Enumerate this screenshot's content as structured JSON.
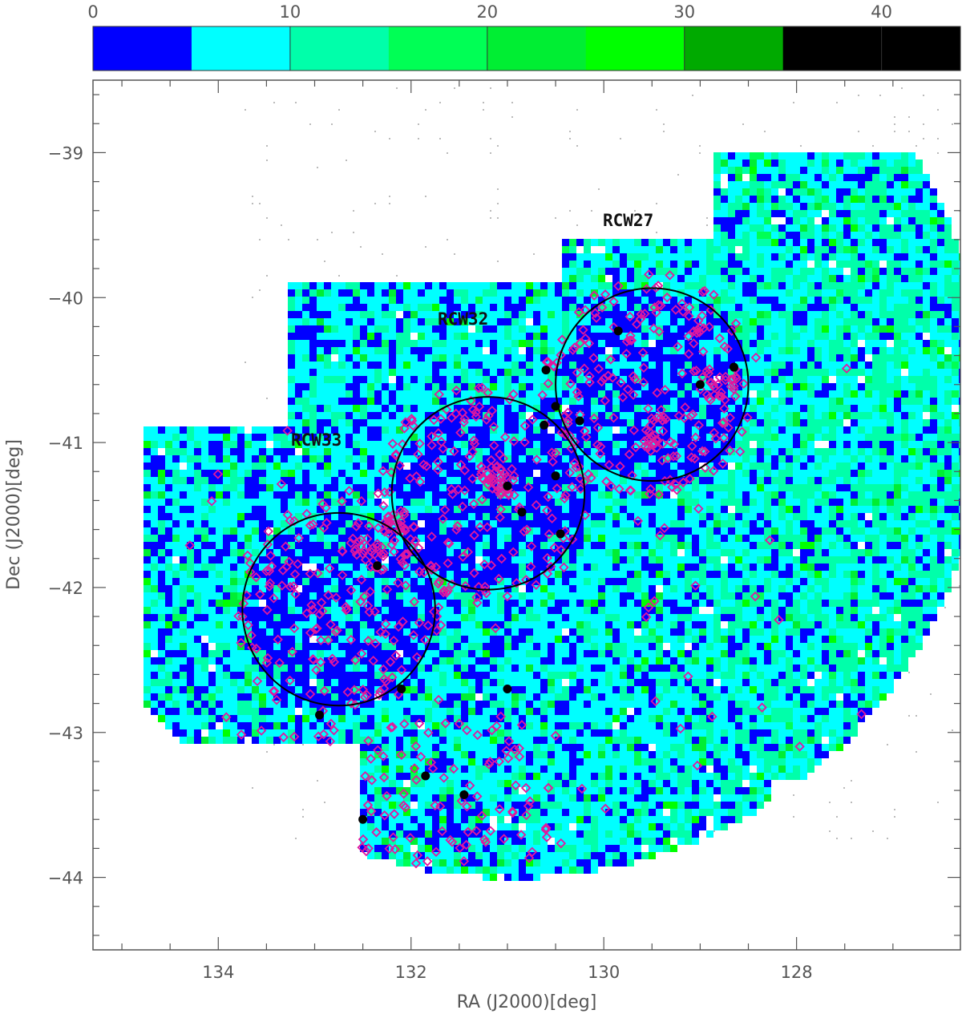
{
  "chart_data": {
    "type": "scatter",
    "colorbar": {
      "ticks": [
        0,
        10,
        20,
        30,
        40
      ],
      "range": [
        0,
        44
      ],
      "bins": [
        {
          "from": 0,
          "to": 5,
          "color": "#0000ff"
        },
        {
          "from": 5,
          "to": 10,
          "color": "#00ffff"
        },
        {
          "from": 10,
          "to": 15,
          "color": "#00ffaa"
        },
        {
          "from": 15,
          "to": 20,
          "color": "#00ff55"
        },
        {
          "from": 20,
          "to": 25,
          "color": "#00ee33"
        },
        {
          "from": 25,
          "to": 30,
          "color": "#00ff00"
        },
        {
          "from": 30,
          "to": 35,
          "color": "#00aa00"
        },
        {
          "from": 35,
          "to": 44,
          "color": "#000000"
        }
      ]
    },
    "xlabel": "RA (J2000)[deg]",
    "ylabel": "Dec (J2000)[deg]",
    "xlim": [
      135.3,
      126.3
    ],
    "ylim": [
      -44.5,
      -38.5
    ],
    "x_ticks": [
      134,
      132,
      130,
      128
    ],
    "y_ticks": [
      -39,
      -40,
      -41,
      -42,
      -43,
      -44
    ],
    "regions": [
      {
        "name": "RCW27",
        "ra": 129.5,
        "dec": -40.6,
        "radius_deg": 1.0
      },
      {
        "name": "RCW32",
        "ra": 131.2,
        "dec": -41.35,
        "radius_deg": 1.0
      },
      {
        "name": "RCW33",
        "ra": 132.75,
        "dec": -42.15,
        "radius_deg": 1.0
      }
    ],
    "black_points": [
      {
        "ra": 129.85,
        "dec": -40.23
      },
      {
        "ra": 128.65,
        "dec": -40.48
      },
      {
        "ra": 129.0,
        "dec": -40.6
      },
      {
        "ra": 130.6,
        "dec": -40.5
      },
      {
        "ra": 130.5,
        "dec": -40.75
      },
      {
        "ra": 130.62,
        "dec": -40.88
      },
      {
        "ra": 130.25,
        "dec": -40.85
      },
      {
        "ra": 130.5,
        "dec": -41.23
      },
      {
        "ra": 131.0,
        "dec": -41.3
      },
      {
        "ra": 130.85,
        "dec": -41.48
      },
      {
        "ra": 130.45,
        "dec": -41.63
      },
      {
        "ra": 132.35,
        "dec": -41.85
      },
      {
        "ra": 132.1,
        "dec": -42.7
      },
      {
        "ra": 131.0,
        "dec": -42.7
      },
      {
        "ra": 132.95,
        "dec": -42.88
      },
      {
        "ra": 131.85,
        "dec": -43.3
      },
      {
        "ra": 131.45,
        "dec": -43.43
      },
      {
        "ra": 132.5,
        "dec": -43.6
      }
    ],
    "colors": {
      "diamond": "#e0189e",
      "circle": "#000000",
      "background_gray": "#bbbbbb"
    }
  }
}
